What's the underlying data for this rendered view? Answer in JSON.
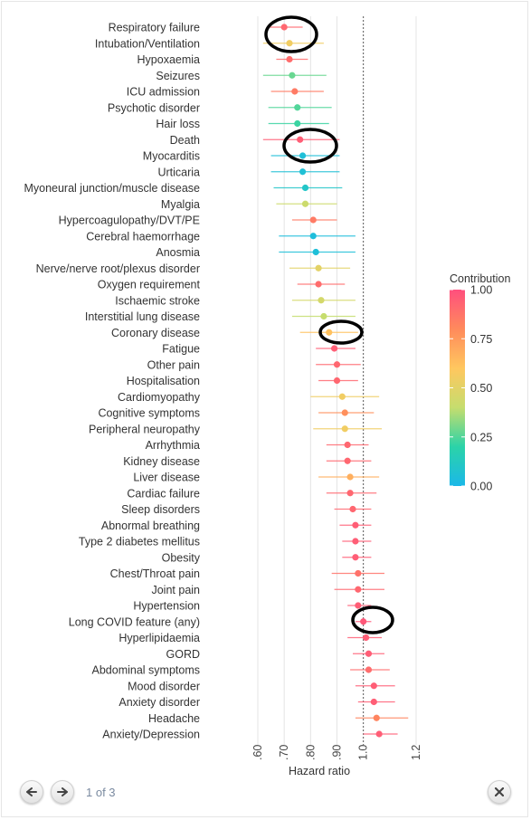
{
  "chart_data": {
    "type": "scatter",
    "subtype": "forest-plot",
    "xlabel": "Hazard ratio",
    "xlim": [
      0.58,
      1.25
    ],
    "xticks": [
      0.6,
      0.7,
      0.8,
      0.9,
      1.0,
      1.2
    ],
    "xtick_labels": [
      ".60",
      ".70",
      ".80",
      ".90",
      "1.0",
      "1.2"
    ],
    "reference_line": 1.0,
    "legend": {
      "title": "Contribution",
      "ticks": [
        "1.00",
        "0.75",
        "0.50",
        "0.25",
        "0.00"
      ],
      "placement": "right"
    },
    "colorscale": [
      "#1bb8e8",
      "#2bd3a8",
      "#c6dd6e",
      "#ffc75f",
      "#ff8a5c",
      "#ff4f7e"
    ],
    "rows": [
      {
        "label": "Respiratory failure",
        "hr": 0.7,
        "lo": 0.64,
        "hi": 0.77,
        "contribution": 0.92
      },
      {
        "label": "Intubation/Ventilation",
        "hr": 0.72,
        "lo": 0.62,
        "hi": 0.85,
        "contribution": 0.55
      },
      {
        "label": "Hypoxaemia",
        "hr": 0.72,
        "lo": 0.67,
        "hi": 0.79,
        "contribution": 0.9
      },
      {
        "label": "Seizures",
        "hr": 0.73,
        "lo": 0.62,
        "hi": 0.86,
        "contribution": 0.28
      },
      {
        "label": "ICU admission",
        "hr": 0.74,
        "lo": 0.65,
        "hi": 0.85,
        "contribution": 0.85
      },
      {
        "label": "Psychotic disorder",
        "hr": 0.75,
        "lo": 0.64,
        "hi": 0.88,
        "contribution": 0.25
      },
      {
        "label": "Hair loss",
        "hr": 0.75,
        "lo": 0.64,
        "hi": 0.87,
        "contribution": 0.22
      },
      {
        "label": "Death",
        "hr": 0.76,
        "lo": 0.62,
        "hi": 0.91,
        "contribution": 0.95
      },
      {
        "label": "Myocarditis",
        "hr": 0.77,
        "lo": 0.65,
        "hi": 0.91,
        "contribution": 0.05
      },
      {
        "label": "Urticaria",
        "hr": 0.77,
        "lo": 0.65,
        "hi": 0.91,
        "contribution": 0.06
      },
      {
        "label": "Myoneural junction/muscle disease",
        "hr": 0.78,
        "lo": 0.66,
        "hi": 0.92,
        "contribution": 0.1
      },
      {
        "label": "Myalgia",
        "hr": 0.78,
        "lo": 0.67,
        "hi": 0.9,
        "contribution": 0.42
      },
      {
        "label": "Hypercoagulopathy/DVT/PE",
        "hr": 0.81,
        "lo": 0.73,
        "hi": 0.9,
        "contribution": 0.85
      },
      {
        "label": "Cerebral haemorrhage",
        "hr": 0.81,
        "lo": 0.68,
        "hi": 0.97,
        "contribution": 0.04
      },
      {
        "label": "Anosmia",
        "hr": 0.82,
        "lo": 0.68,
        "hi": 0.97,
        "contribution": 0.05
      },
      {
        "label": "Nerve/nerve root/plexus disorder",
        "hr": 0.83,
        "lo": 0.72,
        "hi": 0.95,
        "contribution": 0.5
      },
      {
        "label": "Oxygen requirement",
        "hr": 0.83,
        "lo": 0.75,
        "hi": 0.93,
        "contribution": 0.9
      },
      {
        "label": "Ischaemic stroke",
        "hr": 0.84,
        "lo": 0.73,
        "hi": 0.97,
        "contribution": 0.45
      },
      {
        "label": "Interstitial lung disease",
        "hr": 0.85,
        "lo": 0.73,
        "hi": 0.97,
        "contribution": 0.4
      },
      {
        "label": "Coronary disease",
        "hr": 0.87,
        "lo": 0.76,
        "hi": 0.98,
        "contribution": 0.62
      },
      {
        "label": "Fatigue",
        "hr": 0.89,
        "lo": 0.82,
        "hi": 0.97,
        "contribution": 0.95
      },
      {
        "label": "Other pain",
        "hr": 0.9,
        "lo": 0.82,
        "hi": 0.99,
        "contribution": 0.92
      },
      {
        "label": "Hospitalisation",
        "hr": 0.9,
        "lo": 0.83,
        "hi": 0.98,
        "contribution": 0.92
      },
      {
        "label": "Cardiomyopathy",
        "hr": 0.92,
        "lo": 0.8,
        "hi": 1.06,
        "contribution": 0.55
      },
      {
        "label": "Cognitive symptoms",
        "hr": 0.93,
        "lo": 0.83,
        "hi": 1.04,
        "contribution": 0.78
      },
      {
        "label": "Peripheral neuropathy",
        "hr": 0.93,
        "lo": 0.81,
        "hi": 1.07,
        "contribution": 0.55
      },
      {
        "label": "Arrhythmia",
        "hr": 0.94,
        "lo": 0.86,
        "hi": 1.02,
        "contribution": 0.92
      },
      {
        "label": "Kidney disease",
        "hr": 0.94,
        "lo": 0.86,
        "hi": 1.03,
        "contribution": 0.92
      },
      {
        "label": "Liver disease",
        "hr": 0.95,
        "lo": 0.83,
        "hi": 1.06,
        "contribution": 0.68
      },
      {
        "label": "Cardiac failure",
        "hr": 0.95,
        "lo": 0.86,
        "hi": 1.05,
        "contribution": 0.92
      },
      {
        "label": "Sleep disorders",
        "hr": 0.96,
        "lo": 0.89,
        "hi": 1.03,
        "contribution": 0.92
      },
      {
        "label": "Abnormal breathing",
        "hr": 0.97,
        "lo": 0.91,
        "hi": 1.03,
        "contribution": 0.95
      },
      {
        "label": "Type 2 diabetes mellitus",
        "hr": 0.97,
        "lo": 0.92,
        "hi": 1.03,
        "contribution": 0.95
      },
      {
        "label": "Obesity",
        "hr": 0.97,
        "lo": 0.92,
        "hi": 1.03,
        "contribution": 0.95
      },
      {
        "label": "Chest/Throat pain",
        "hr": 0.98,
        "lo": 0.88,
        "hi": 1.08,
        "contribution": 0.88
      },
      {
        "label": "Joint pain",
        "hr": 0.98,
        "lo": 0.89,
        "hi": 1.08,
        "contribution": 0.92
      },
      {
        "label": "Hypertension",
        "hr": 0.98,
        "lo": 0.94,
        "hi": 1.03,
        "contribution": 0.95
      },
      {
        "label": "Long COVID feature (any)",
        "hr": 1.0,
        "lo": 0.97,
        "hi": 1.03,
        "contribution": 0.97
      },
      {
        "label": "Hyperlipidaemia",
        "hr": 1.01,
        "lo": 0.94,
        "hi": 1.07,
        "contribution": 0.95
      },
      {
        "label": "GORD",
        "hr": 1.02,
        "lo": 0.96,
        "hi": 1.08,
        "contribution": 0.95
      },
      {
        "label": "Abdominal symptoms",
        "hr": 1.02,
        "lo": 0.95,
        "hi": 1.1,
        "contribution": 0.9
      },
      {
        "label": "Mood disorder",
        "hr": 1.04,
        "lo": 0.97,
        "hi": 1.12,
        "contribution": 0.95
      },
      {
        "label": "Anxiety disorder",
        "hr": 1.04,
        "lo": 0.98,
        "hi": 1.12,
        "contribution": 0.95
      },
      {
        "label": "Headache",
        "hr": 1.05,
        "lo": 0.97,
        "hi": 1.17,
        "contribution": 0.82
      },
      {
        "label": "Anxiety/Depression",
        "hr": 1.06,
        "lo": 1.0,
        "hi": 1.13,
        "contribution": 0.95
      }
    ],
    "highlighted_rows": [
      "Respiratory failure",
      "Intubation/Ventilation",
      "Death",
      "Myocarditis",
      "Coronary disease",
      "Long COVID feature (any)"
    ]
  },
  "viewer": {
    "page_counter": "1 of 3"
  }
}
